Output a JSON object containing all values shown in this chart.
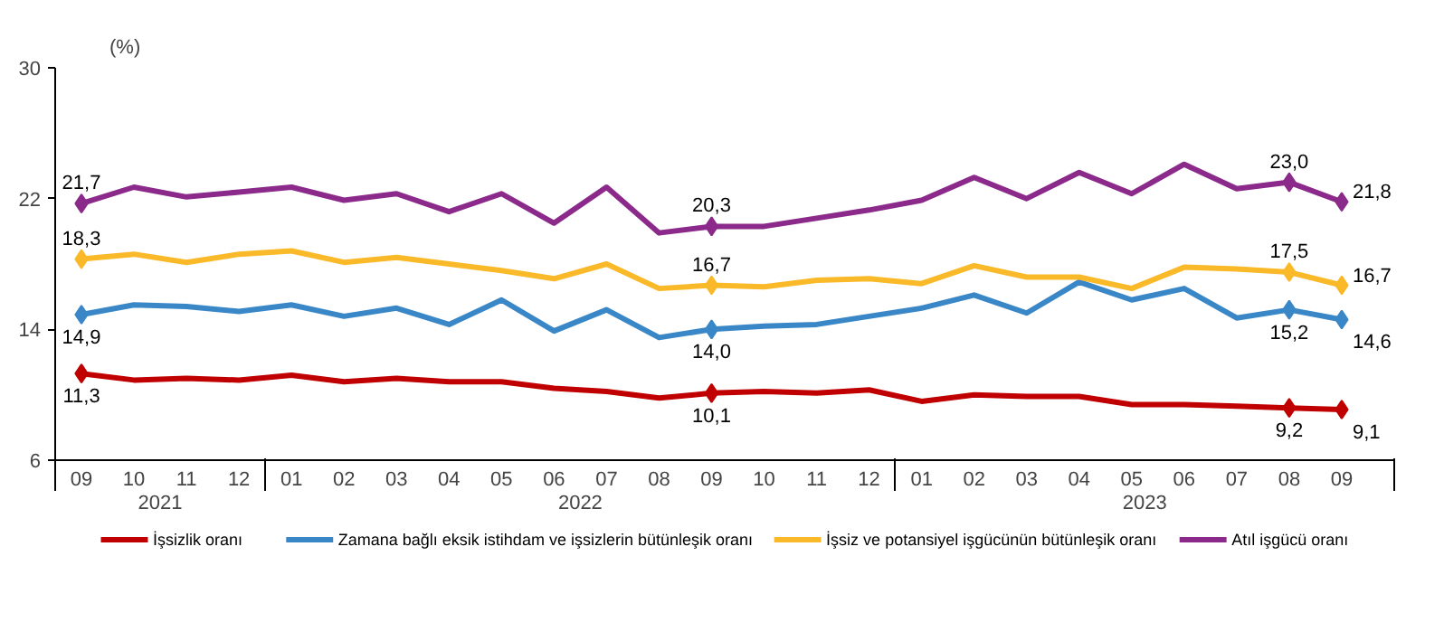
{
  "chart_data": {
    "type": "line",
    "ylabel": "(%)",
    "categories": [
      "09",
      "10",
      "11",
      "12",
      "01",
      "02",
      "03",
      "04",
      "05",
      "06",
      "07",
      "08",
      "09",
      "10",
      "11",
      "12",
      "01",
      "02",
      "03",
      "04",
      "05",
      "06",
      "07",
      "08",
      "09"
    ],
    "annotations": [
      "2021",
      "2022",
      "2023"
    ],
    "ylim": [
      6,
      30
    ],
    "yticks": [
      6,
      14,
      22,
      30
    ],
    "grid": false,
    "legend": "bottom",
    "line_style": "solid",
    "series": [
      {
        "name": "İşsizlik oranı",
        "color": "#c00000",
        "values": [
          11.3,
          10.9,
          11.0,
          10.9,
          11.2,
          10.8,
          11.0,
          10.8,
          10.8,
          10.4,
          10.2,
          9.8,
          10.1,
          10.2,
          10.1,
          10.3,
          9.6,
          10.0,
          9.9,
          9.9,
          9.4,
          9.4,
          9.3,
          9.2,
          9.1
        ],
        "value_labels": [
          "11,3",
          null,
          null,
          null,
          null,
          null,
          null,
          null,
          null,
          null,
          null,
          null,
          "10,1",
          null,
          null,
          null,
          null,
          null,
          null,
          null,
          null,
          null,
          null,
          "9,2",
          "9,1"
        ]
      },
      {
        "name": "Zamana bağlı eksik istihdam ve işsizlerin bütünleşik oranı",
        "color": "#3a87c8",
        "values": [
          14.9,
          15.5,
          15.4,
          15.1,
          15.5,
          14.8,
          15.3,
          14.3,
          15.8,
          13.9,
          15.2,
          13.5,
          14.0,
          14.2,
          14.3,
          14.8,
          15.3,
          16.1,
          15.0,
          16.9,
          15.8,
          16.5,
          14.7,
          15.2,
          14.6
        ],
        "value_labels": [
          "14,9",
          null,
          null,
          null,
          null,
          null,
          null,
          null,
          null,
          null,
          null,
          null,
          "14,0",
          null,
          null,
          null,
          null,
          null,
          null,
          null,
          null,
          null,
          null,
          "15,2",
          "14,6"
        ]
      },
      {
        "name": "İşsiz ve potansiyel işgücünün bütünleşik oranı",
        "color": "#f9b928",
        "values": [
          18.3,
          18.6,
          18.1,
          18.6,
          18.8,
          18.1,
          18.4,
          18.0,
          17.6,
          17.1,
          18.0,
          16.5,
          16.7,
          16.6,
          17.0,
          17.1,
          16.8,
          17.9,
          17.2,
          17.2,
          16.5,
          17.8,
          17.7,
          17.5,
          16.7
        ],
        "value_labels": [
          "18,3",
          null,
          null,
          null,
          null,
          null,
          null,
          null,
          null,
          null,
          null,
          null,
          "16,7",
          null,
          null,
          null,
          null,
          null,
          null,
          null,
          null,
          null,
          null,
          "17,5",
          "16,7"
        ]
      },
      {
        "name": "Atıl işgücü oranı",
        "color": "#8b2a8b",
        "values": [
          21.7,
          22.7,
          22.1,
          22.4,
          22.7,
          21.9,
          22.3,
          21.2,
          22.3,
          20.5,
          22.7,
          19.9,
          20.3,
          20.3,
          20.8,
          21.3,
          21.9,
          23.3,
          22.0,
          23.6,
          22.3,
          24.1,
          22.6,
          23.0,
          21.8
        ],
        "value_labels": [
          "21,7",
          null,
          null,
          null,
          null,
          null,
          null,
          null,
          null,
          null,
          null,
          null,
          "20,3",
          null,
          null,
          null,
          null,
          null,
          null,
          null,
          null,
          null,
          null,
          "23,0",
          "21,8"
        ]
      }
    ]
  }
}
